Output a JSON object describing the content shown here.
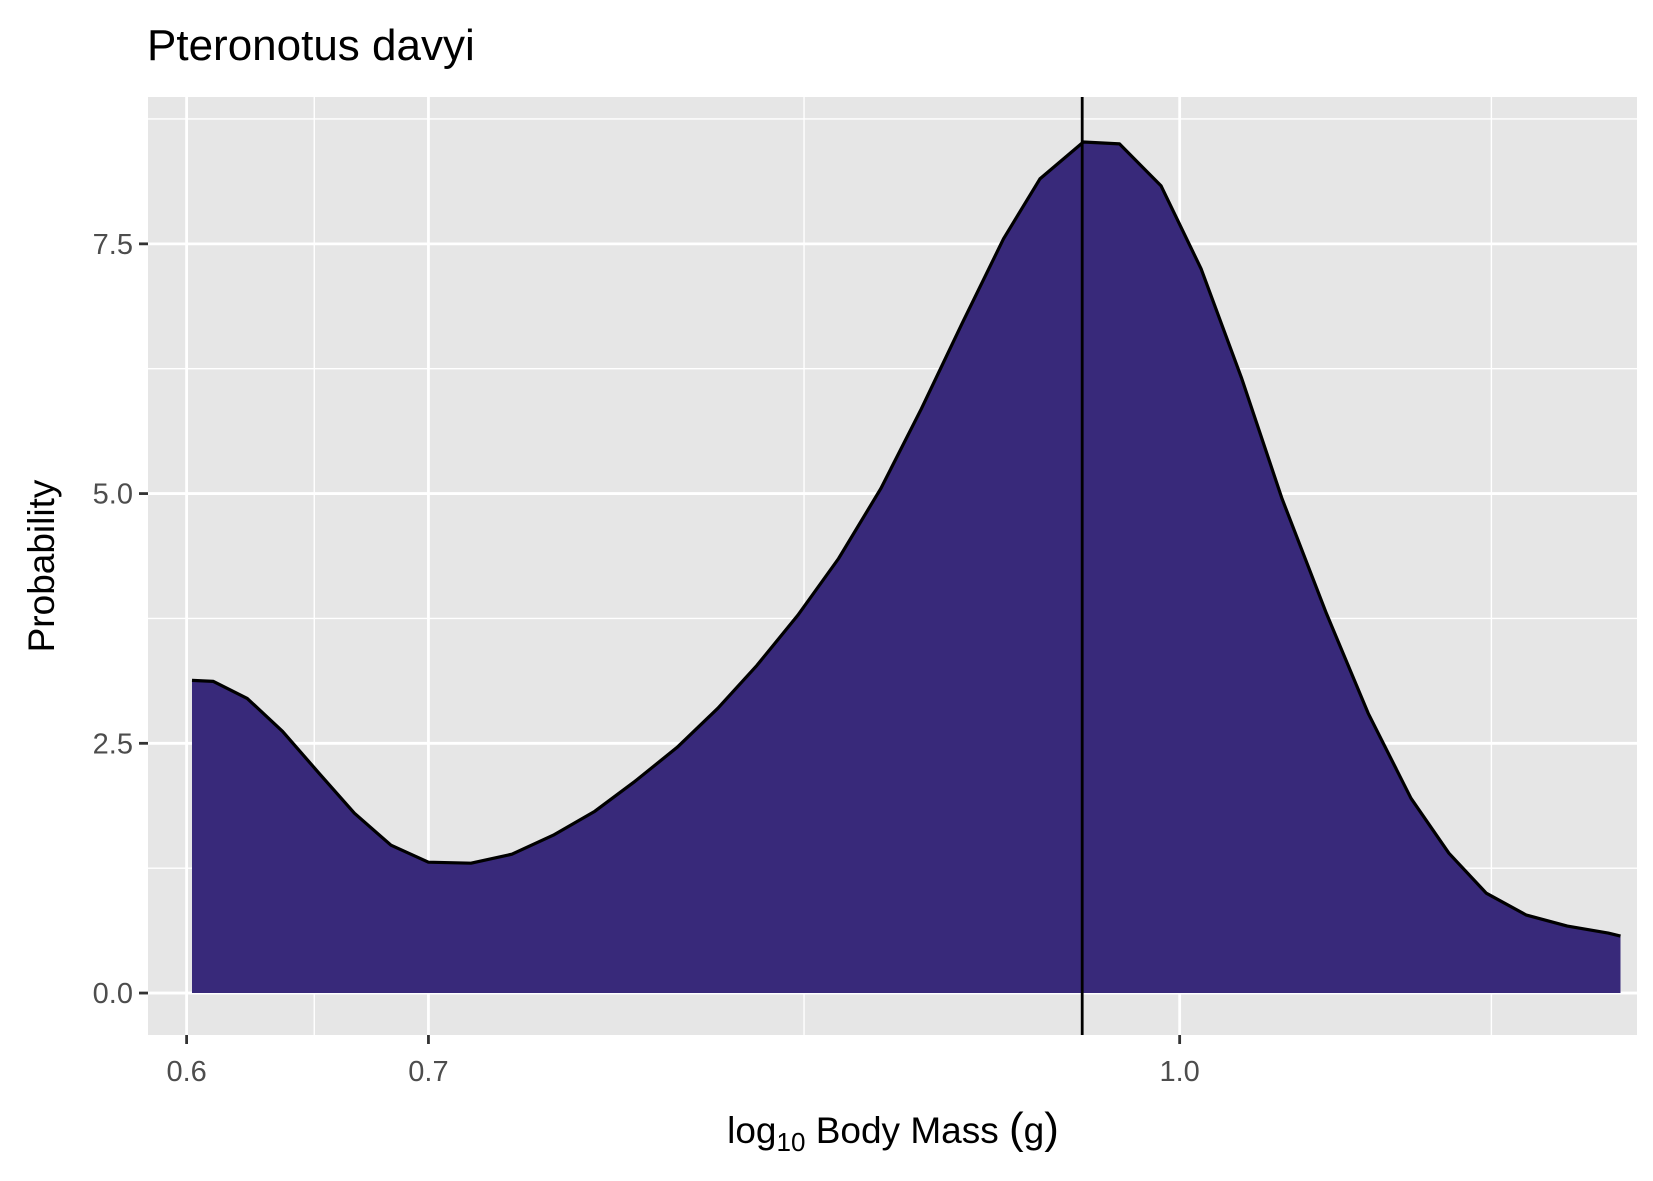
{
  "chart_data": {
    "type": "area",
    "title": "Pteronotus davyi",
    "xlabel": {
      "pre": "log",
      "sub": "10",
      "post": " Body Mass ",
      "paren_open": "(",
      "unit": "g",
      "paren_close": ")"
    },
    "ylabel": "Probability",
    "x_scale": "log10",
    "x_ticks": [
      {
        "value": 4,
        "label": "0.6"
      },
      {
        "value": 5,
        "label": "0.7"
      },
      {
        "value": 10,
        "label": "1.0"
      }
    ],
    "x_minor_gridlines": [
      4.5,
      7.071,
      13.333
    ],
    "y_ticks": [
      {
        "value": 0,
        "label": "0.0"
      },
      {
        "value": 2.5,
        "label": "2.5"
      },
      {
        "value": 5,
        "label": "5.0"
      },
      {
        "value": 7.5,
        "label": "7.5"
      }
    ],
    "y_minor_gridlines": [
      1.25,
      3.75,
      6.25,
      8.75
    ],
    "xlim": [
      3.86,
      15.25
    ],
    "ylim": [
      -0.42,
      8.97
    ],
    "grid": true,
    "vline_x": 9.14,
    "series": [
      {
        "fill": "#38297a",
        "outline": "#000000",
        "x": [
          4.02,
          4.1,
          4.23,
          4.37,
          4.52,
          4.67,
          4.83,
          5.0,
          5.2,
          5.4,
          5.61,
          5.83,
          6.05,
          6.29,
          6.53,
          6.77,
          7.03,
          7.3,
          7.59,
          7.88,
          8.18,
          8.5,
          8.79,
          9.15,
          9.46,
          9.83,
          10.2,
          10.59,
          10.99,
          11.45,
          11.9,
          12.38,
          12.82,
          13.27,
          13.77,
          14.3,
          14.85,
          15.02
        ],
        "y": [
          3.13,
          3.12,
          2.95,
          2.62,
          2.2,
          1.8,
          1.48,
          1.31,
          1.3,
          1.39,
          1.58,
          1.82,
          2.12,
          2.46,
          2.85,
          3.28,
          3.78,
          4.35,
          5.05,
          5.85,
          6.7,
          7.55,
          8.15,
          8.52,
          8.5,
          8.08,
          7.25,
          6.15,
          4.95,
          3.8,
          2.8,
          1.95,
          1.4,
          1.0,
          0.78,
          0.67,
          0.6,
          0.57
        ]
      }
    ]
  }
}
